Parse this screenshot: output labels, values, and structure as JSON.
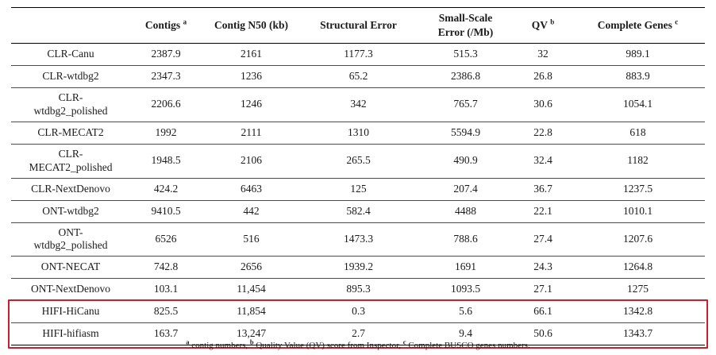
{
  "table": {
    "headers": [
      {
        "label": "",
        "sup": ""
      },
      {
        "label": "Contigs",
        "sup": "a"
      },
      {
        "label": "Contig N50 (kb)",
        "sup": ""
      },
      {
        "label": "Structural Error",
        "sup": ""
      },
      {
        "label": "Small-Scale\nError (/Mb)",
        "sup": ""
      },
      {
        "label": "QV",
        "sup": "b"
      },
      {
        "label": "Complete Genes",
        "sup": "c"
      }
    ],
    "rows": [
      {
        "name": "CLR-Canu",
        "values": [
          "2387.9",
          "2161",
          "1177.3",
          "515.3",
          "32",
          "989.1"
        ],
        "highlight": false
      },
      {
        "name": "CLR-wtdbg2",
        "values": [
          "2347.3",
          "1236",
          "65.2",
          "2386.8",
          "26.8",
          "883.9"
        ],
        "highlight": false
      },
      {
        "name": "CLR-\nwtdbg2_polished",
        "values": [
          "2206.6",
          "1246",
          "342",
          "765.7",
          "30.6",
          "1054.1"
        ],
        "highlight": false
      },
      {
        "name": "CLR-MECAT2",
        "values": [
          "1992",
          "2111",
          "1310",
          "5594.9",
          "22.8",
          "618"
        ],
        "highlight": false
      },
      {
        "name": "CLR-\nMECAT2_polished",
        "values": [
          "1948.5",
          "2106",
          "265.5",
          "490.9",
          "32.4",
          "1182"
        ],
        "highlight": false
      },
      {
        "name": "CLR-NextDenovo",
        "values": [
          "424.2",
          "6463",
          "125",
          "207.4",
          "36.7",
          "1237.5"
        ],
        "highlight": false
      },
      {
        "name": "ONT-wtdbg2",
        "values": [
          "9410.5",
          "442",
          "582.4",
          "4488",
          "22.1",
          "1010.1"
        ],
        "highlight": false
      },
      {
        "name": "ONT-\nwtdbg2_polished",
        "values": [
          "6526",
          "516",
          "1473.3",
          "788.6",
          "27.4",
          "1207.6"
        ],
        "highlight": false
      },
      {
        "name": "ONT-NECAT",
        "values": [
          "742.8",
          "2656",
          "1939.2",
          "1691",
          "24.3",
          "1264.8"
        ],
        "highlight": false
      },
      {
        "name": "ONT-NextDenovo",
        "values": [
          "103.1",
          "11,454",
          "895.3",
          "1093.5",
          "27.1",
          "1275"
        ],
        "highlight": false
      },
      {
        "name": "HIFI-HiCanu",
        "values": [
          "825.5",
          "11,854",
          "0.3",
          "5.6",
          "66.1",
          "1342.8"
        ],
        "highlight": true
      },
      {
        "name": "HIFI-hifiasm",
        "values": [
          "163.7",
          "13,247",
          "2.7",
          "9.4",
          "50.6",
          "1343.7"
        ],
        "highlight": true
      }
    ]
  },
  "footnote": {
    "parts": [
      {
        "sup": "a",
        "text": " contig numbers, "
      },
      {
        "sup": "b",
        "text": " Quality Value (QV) score from Inspector, "
      },
      {
        "sup": "c",
        "text": " Complete BUSCO genes numbers."
      }
    ]
  },
  "colors": {
    "highlight_box": "#c8202a",
    "rule": "#000000",
    "text": "#1a1a1a"
  }
}
